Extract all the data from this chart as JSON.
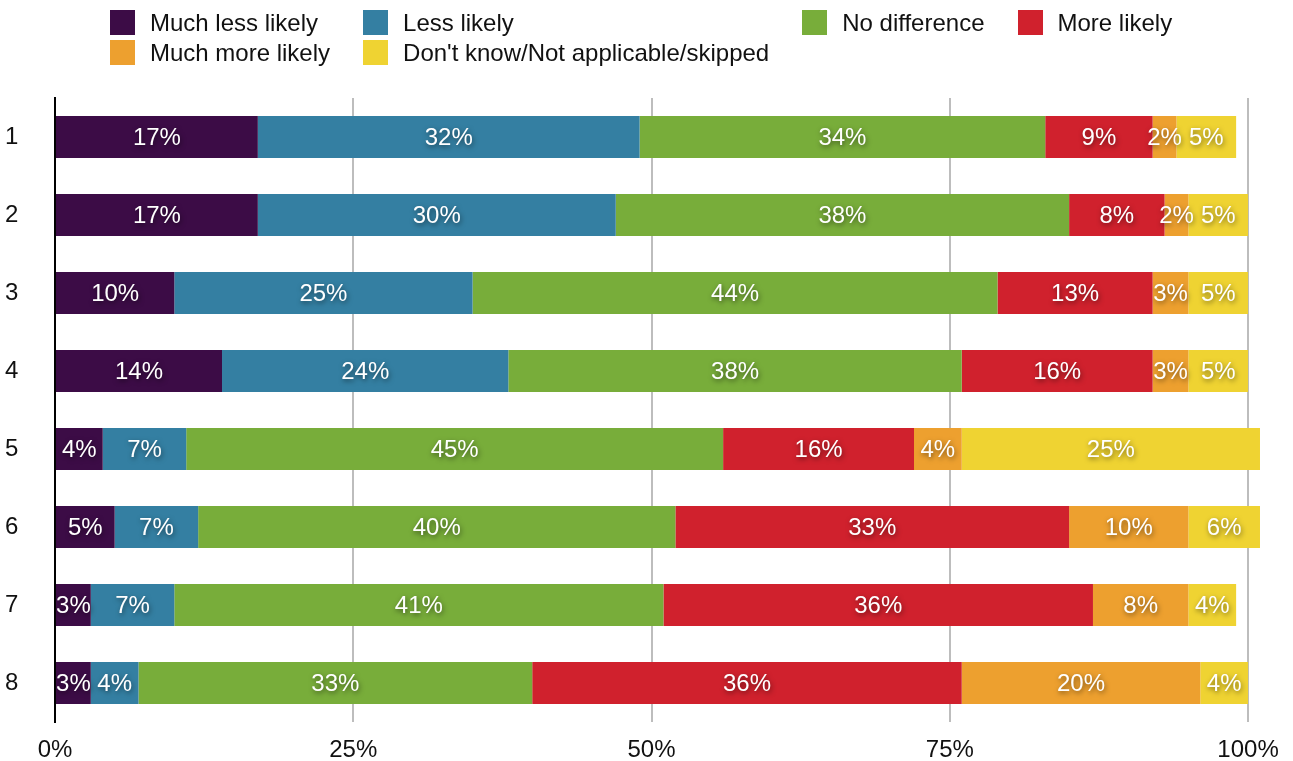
{
  "chart_data": {
    "type": "bar",
    "orientation": "horizontal",
    "stacked": true,
    "categories": [
      "1",
      "2",
      "3",
      "4",
      "5",
      "6",
      "7",
      "8"
    ],
    "series": [
      {
        "name": "Much less likely",
        "color": "#3c0c46",
        "values": [
          17,
          17,
          10,
          14,
          4,
          5,
          3,
          3
        ],
        "value_labels": [
          "17%",
          "17%",
          "10%",
          "14%",
          "4%",
          "5%",
          "3%",
          "3%"
        ]
      },
      {
        "name": "Less likely",
        "color": "#347fa2",
        "values": [
          32,
          30,
          25,
          24,
          7,
          7,
          7,
          4
        ],
        "value_labels": [
          "32%",
          "30%",
          "25%",
          "24%",
          "7%",
          "7%",
          "7%",
          "4%"
        ]
      },
      {
        "name": "No difference",
        "color": "#78ad3a",
        "values": [
          34,
          38,
          44,
          38,
          45,
          40,
          41,
          33
        ],
        "value_labels": [
          "34%",
          "38%",
          "44%",
          "38%",
          "45%",
          "40%",
          "41%",
          "33%"
        ]
      },
      {
        "name": "More likely",
        "color": "#d0212d",
        "values": [
          9,
          8,
          13,
          16,
          16,
          33,
          36,
          36
        ],
        "value_labels": [
          "9%",
          "8%",
          "13%",
          "16%",
          "16%",
          "33%",
          "36%",
          "36%"
        ]
      },
      {
        "name": "Much more likely",
        "color": "#eda02f",
        "values": [
          2,
          2,
          3,
          3,
          4,
          10,
          8,
          20
        ],
        "value_labels": [
          "2%",
          "2%",
          "3%",
          "3%",
          "4%",
          "10%",
          "8%",
          "20%"
        ]
      },
      {
        "name": "Don't know/Not applicable/skipped",
        "color": "#efd332",
        "values": [
          5,
          5,
          5,
          5,
          25,
          6,
          4,
          4
        ],
        "value_labels": [
          "5%",
          "5%",
          "5%",
          "5%",
          "25%",
          "6%",
          "4%",
          "4%"
        ]
      }
    ],
    "xlim": [
      0,
      101
    ],
    "xticks": [
      {
        "value": 0,
        "label": "0%"
      },
      {
        "value": 25,
        "label": "25%"
      },
      {
        "value": 50,
        "label": "50%"
      },
      {
        "value": 75,
        "label": "75%"
      },
      {
        "value": 100,
        "label": "100%"
      }
    ],
    "grid": "x",
    "legend": "top"
  }
}
